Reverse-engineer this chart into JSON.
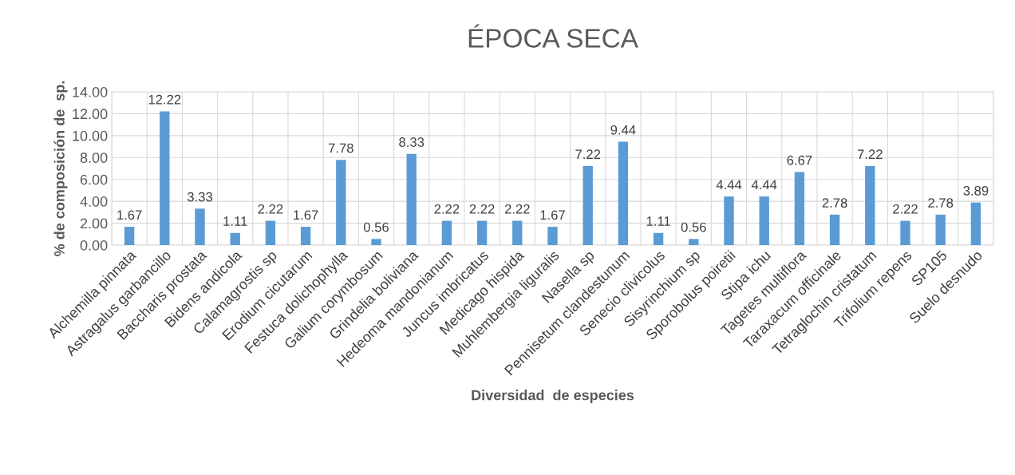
{
  "chart_data": {
    "type": "bar",
    "title": "ÉPOCA SECA",
    "xlabel": "Diversidad  de especies",
    "ylabel": "% de composición de  sp.",
    "categories": [
      "Alchemilla pinnata",
      "Astragalus garbancillo",
      "Baccharis prostata",
      "Bidens andicola",
      "Calamagrostis sp",
      "Erodium cicutarum",
      "Festuca dolichophylla",
      "Galium corymbosum",
      "Grindelia boliviana",
      "Hedeoma mandonianum",
      "Juncus imbricatus",
      "Medicago hispida",
      "Muhlembergia liguralis",
      "Nasella sp",
      "Pennisetum clandestunum",
      "Senecio clivicolus",
      "Sisyrinchium sp",
      "Sporobolus poiretii",
      "Stipa ichu",
      "Tagetes multiflora",
      "Taraxacum officinale",
      "Tetraglochin cristatum",
      "Trifolium repens",
      "SP105",
      "Suelo desnudo"
    ],
    "values": [
      1.67,
      12.22,
      3.33,
      1.11,
      2.22,
      1.67,
      7.78,
      0.56,
      8.33,
      2.22,
      2.22,
      2.22,
      1.67,
      7.22,
      9.44,
      1.11,
      0.56,
      4.44,
      4.44,
      6.67,
      2.78,
      7.22,
      2.22,
      2.78,
      3.89
    ],
    "color": "#5b9bd5",
    "data_labels": true,
    "grid": true,
    "ylim": [
      0,
      14
    ],
    "yticks": [
      {
        "value": 0,
        "label": "0.00"
      },
      {
        "value": 2,
        "label": "2.00"
      },
      {
        "value": 4,
        "label": "4.00"
      },
      {
        "value": 6,
        "label": "6.00"
      },
      {
        "value": 8,
        "label": "8.00"
      },
      {
        "value": 10,
        "label": "10.00"
      },
      {
        "value": 12,
        "label": "12.00"
      },
      {
        "value": 14,
        "label": "14.00"
      }
    ]
  }
}
